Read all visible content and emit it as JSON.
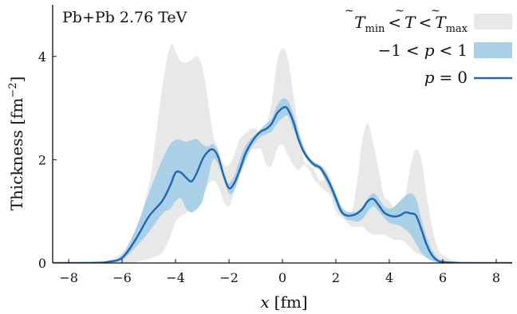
{
  "chart_data": {
    "type": "area",
    "annotation": "Pb+Pb 2.76 TeV",
    "xlabel_var": "x",
    "xlabel_unit": "[fm]",
    "ylabel": "Thickness [fm",
    "ylabel_exp": "−2",
    "ylabel_close": "]",
    "xlim": [
      -8.6,
      8.6
    ],
    "ylim": [
      0,
      5.0
    ],
    "xticks": [
      -8,
      -6,
      -4,
      -2,
      0,
      2,
      4,
      6,
      8
    ],
    "yticks": [
      0,
      2,
      4
    ],
    "legend_position": "top-right",
    "legend": [
      {
        "key": "tmin_tmax",
        "label_parts": {
          "T": "T",
          "sub_min": "min",
          "lt": "<",
          "sub_max": "max"
        },
        "style": "fill",
        "color": "#e8e8e8"
      },
      {
        "key": "p_range",
        "label_parts": {
          "neg1": "−1",
          "lt": "<",
          "p": "p",
          "one": "1"
        },
        "style": "fill",
        "color": "#aad0e8"
      },
      {
        "key": "p0",
        "label_parts": {
          "p": "p",
          "eq": "=",
          "zero": "0"
        },
        "style": "line",
        "color": "#2166ac"
      }
    ],
    "series": [
      {
        "key": "tmin_tmax",
        "kind": "band",
        "color": "#e8e8e8",
        "x": [
          -8.6,
          -7.0,
          -6.5,
          -6.0,
          -5.5,
          -5.0,
          -4.8,
          -4.5,
          -4.2,
          -4.0,
          -3.8,
          -3.5,
          -3.2,
          -3.0,
          -2.8,
          -2.6,
          -2.4,
          -2.2,
          -2.0,
          -1.8,
          -1.6,
          -1.4,
          -1.2,
          -1.0,
          -0.8,
          -0.6,
          -0.4,
          -0.2,
          0.0,
          0.2,
          0.4,
          0.6,
          0.8,
          1.0,
          1.2,
          1.4,
          1.6,
          1.8,
          2.0,
          2.2,
          2.4,
          2.6,
          2.8,
          3.0,
          3.2,
          3.4,
          3.6,
          3.8,
          4.0,
          4.2,
          4.4,
          4.6,
          4.8,
          5.0,
          5.2,
          5.4,
          5.6,
          5.8,
          6.0,
          6.5,
          7.0,
          8.6
        ],
        "lower": [
          0,
          0,
          0,
          0,
          0.02,
          0.08,
          0.12,
          0.2,
          0.5,
          0.8,
          0.9,
          1.0,
          1.1,
          1.3,
          1.5,
          1.6,
          1.5,
          1.2,
          1.1,
          1.4,
          1.8,
          2.1,
          2.2,
          2.2,
          2.2,
          1.9,
          1.9,
          2.2,
          2.3,
          2.1,
          1.9,
          1.8,
          1.9,
          1.8,
          1.6,
          1.5,
          1.4,
          1.3,
          1.0,
          0.9,
          0.8,
          0.7,
          0.7,
          0.7,
          0.6,
          0.55,
          0.55,
          0.55,
          0.5,
          0.45,
          0.45,
          0.4,
          0.3,
          0.2,
          0.15,
          0.1,
          0.06,
          0.03,
          0.01,
          0,
          0,
          0
        ],
        "upper": [
          0,
          0.01,
          0.05,
          0.2,
          0.6,
          1.5,
          2.2,
          3.4,
          4.2,
          4.1,
          3.9,
          3.9,
          4.0,
          3.8,
          3.2,
          2.5,
          2.2,
          1.9,
          1.9,
          2.1,
          2.4,
          2.5,
          2.6,
          2.6,
          2.5,
          2.7,
          3.1,
          3.9,
          4.15,
          3.95,
          3.3,
          2.6,
          2.0,
          1.9,
          1.8,
          1.6,
          1.6,
          1.5,
          1.3,
          1.1,
          0.95,
          1.0,
          1.6,
          2.4,
          2.7,
          2.3,
          1.8,
          1.3,
          1.2,
          1.0,
          1.0,
          1.3,
          1.9,
          2.2,
          2.0,
          1.3,
          0.7,
          0.3,
          0.15,
          0.04,
          0.01,
          0
        ]
      },
      {
        "key": "p_range",
        "kind": "band",
        "color": "#aad0e8",
        "x": [
          -8.6,
          -7.0,
          -6.5,
          -6.0,
          -5.5,
          -5.0,
          -4.5,
          -4.2,
          -4.0,
          -3.8,
          -3.6,
          -3.4,
          -3.2,
          -3.0,
          -2.8,
          -2.6,
          -2.4,
          -2.2,
          -2.0,
          -1.8,
          -1.6,
          -1.4,
          -1.2,
          -1.0,
          -0.8,
          -0.6,
          -0.4,
          -0.2,
          0.0,
          0.2,
          0.4,
          0.6,
          0.8,
          1.0,
          1.2,
          1.4,
          1.6,
          1.8,
          2.0,
          2.2,
          2.4,
          2.6,
          2.8,
          3.0,
          3.2,
          3.4,
          3.6,
          3.8,
          4.0,
          4.2,
          4.4,
          4.6,
          4.8,
          5.0,
          5.2,
          5.4,
          5.6,
          5.8,
          6.0,
          6.5,
          7.0,
          8.6
        ],
        "lower": [
          0,
          0,
          0.01,
          0.06,
          0.3,
          0.6,
          0.95,
          1.05,
          1.2,
          1.25,
          1.05,
          0.98,
          1.05,
          1.2,
          1.6,
          2.0,
          1.9,
          1.6,
          1.35,
          1.4,
          1.7,
          1.95,
          2.2,
          2.35,
          2.45,
          2.5,
          2.55,
          2.7,
          2.8,
          2.85,
          2.6,
          2.35,
          2.1,
          1.95,
          1.85,
          1.8,
          1.6,
          1.4,
          1.15,
          0.95,
          0.85,
          0.82,
          0.8,
          0.85,
          1.0,
          1.1,
          1.0,
          0.88,
          0.78,
          0.75,
          0.72,
          0.65,
          0.55,
          0.38,
          0.2,
          0.1,
          0.04,
          0.01,
          0,
          0,
          0,
          0
        ],
        "upper": [
          0,
          0.01,
          0.04,
          0.16,
          0.65,
          1.35,
          2.0,
          2.3,
          2.38,
          2.38,
          2.35,
          2.38,
          2.4,
          2.3,
          2.25,
          2.3,
          2.15,
          1.7,
          1.55,
          1.7,
          2.0,
          2.25,
          2.4,
          2.5,
          2.6,
          2.7,
          2.8,
          3.05,
          3.18,
          3.15,
          2.9,
          2.55,
          2.25,
          2.05,
          1.95,
          1.9,
          1.8,
          1.6,
          1.35,
          1.1,
          1.0,
          0.98,
          1.0,
          1.1,
          1.25,
          1.35,
          1.25,
          1.1,
          1.05,
          1.1,
          1.2,
          1.3,
          1.35,
          1.25,
          0.85,
          0.5,
          0.25,
          0.1,
          0.05,
          0.01,
          0,
          0
        ]
      },
      {
        "key": "p0",
        "kind": "line",
        "color": "#2166ac",
        "x": [
          -8.6,
          -7.0,
          -6.5,
          -6.0,
          -5.5,
          -5.0,
          -4.5,
          -4.2,
          -4.0,
          -3.8,
          -3.6,
          -3.4,
          -3.2,
          -3.0,
          -2.8,
          -2.6,
          -2.4,
          -2.2,
          -2.0,
          -1.8,
          -1.6,
          -1.4,
          -1.2,
          -1.0,
          -0.8,
          -0.6,
          -0.4,
          -0.2,
          0.0,
          0.1,
          0.2,
          0.4,
          0.6,
          0.8,
          1.0,
          1.2,
          1.4,
          1.6,
          1.8,
          2.0,
          2.2,
          2.4,
          2.6,
          2.8,
          3.0,
          3.2,
          3.4,
          3.6,
          3.8,
          4.0,
          4.2,
          4.4,
          4.6,
          4.8,
          5.0,
          5.2,
          5.4,
          5.6,
          5.8,
          6.0,
          6.5,
          7.0,
          8.6
        ],
        "y": [
          0,
          0.005,
          0.025,
          0.1,
          0.45,
          0.9,
          1.2,
          1.5,
          1.75,
          1.75,
          1.65,
          1.58,
          1.75,
          2.0,
          2.15,
          2.2,
          2.05,
          1.7,
          1.45,
          1.55,
          1.8,
          2.1,
          2.3,
          2.45,
          2.55,
          2.6,
          2.7,
          2.9,
          3.0,
          3.02,
          2.98,
          2.75,
          2.4,
          2.15,
          2.0,
          1.9,
          1.85,
          1.7,
          1.5,
          1.25,
          1.0,
          0.92,
          0.92,
          0.96,
          1.05,
          1.2,
          1.24,
          1.12,
          0.98,
          0.92,
          0.9,
          0.92,
          0.98,
          0.96,
          0.92,
          0.65,
          0.35,
          0.15,
          0.05,
          0.02,
          0.005,
          0,
          0
        ]
      }
    ]
  }
}
